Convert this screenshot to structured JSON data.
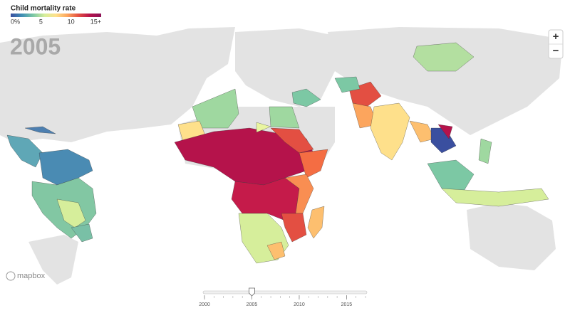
{
  "legend": {
    "title": "Child mortality rate",
    "lim": [
      0,
      15
    ],
    "ticks": [
      {
        "value": 0,
        "label": "0%"
      },
      5,
      10,
      {
        "value": 15,
        "label": "15+"
      }
    ],
    "colors": [
      "#3a4f9f",
      "#3f8fb5",
      "#7cc8a4",
      "#d6ee9b",
      "#fee08b",
      "#fca55d",
      "#e34f42",
      "#b5134b",
      "#8c1356"
    ]
  },
  "slider": {
    "min": 2000,
    "max": 2017,
    "value": 2005,
    "ticks": [
      2000,
      2005,
      2010,
      2015
    ]
  },
  "zoom": {
    "in": "+",
    "out": "−"
  },
  "attribution": "mapbox"
}
